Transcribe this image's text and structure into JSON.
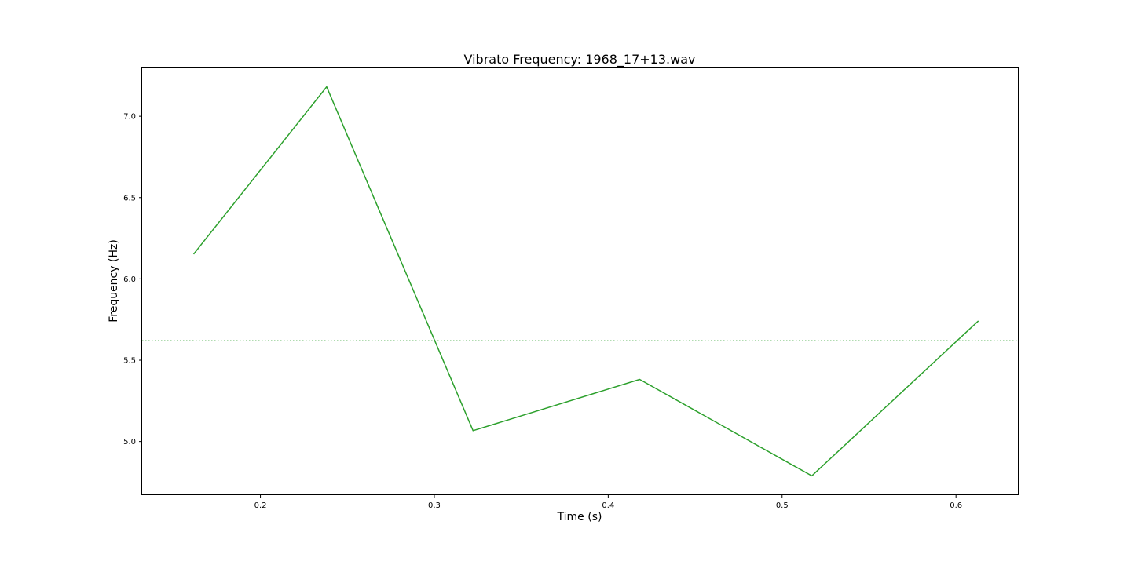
{
  "chart_data": {
    "type": "line",
    "title": "Vibrato Frequency: 1968_17+13.wav",
    "xlabel": "Time (s)",
    "ylabel": "Frequency (Hz)",
    "xlim": [
      0.132,
      0.6356
    ],
    "ylim": [
      4.675,
      7.295
    ],
    "x_ticks": [
      0.2,
      0.3,
      0.4,
      0.5,
      0.6
    ],
    "x_tick_labels": [
      "0.2",
      "0.3",
      "0.4",
      "0.5",
      "0.6"
    ],
    "y_ticks": [
      5.0,
      5.5,
      6.0,
      6.5,
      7.0
    ],
    "y_tick_labels": [
      "5.0",
      "5.5",
      "6.0",
      "6.5",
      "7.0"
    ],
    "grid": false,
    "series": [
      {
        "x": [
          0.1616,
          0.2381,
          0.3223,
          0.4181,
          0.5171,
          0.6129
        ],
        "y": [
          6.152,
          7.181,
          5.067,
          5.382,
          4.789,
          5.742
        ],
        "color": "#2ca02c",
        "style": "solid"
      }
    ],
    "reference_lines": [
      {
        "axis": "y",
        "value": 5.619,
        "color": "#2ca02c",
        "style": "dotted"
      }
    ]
  }
}
